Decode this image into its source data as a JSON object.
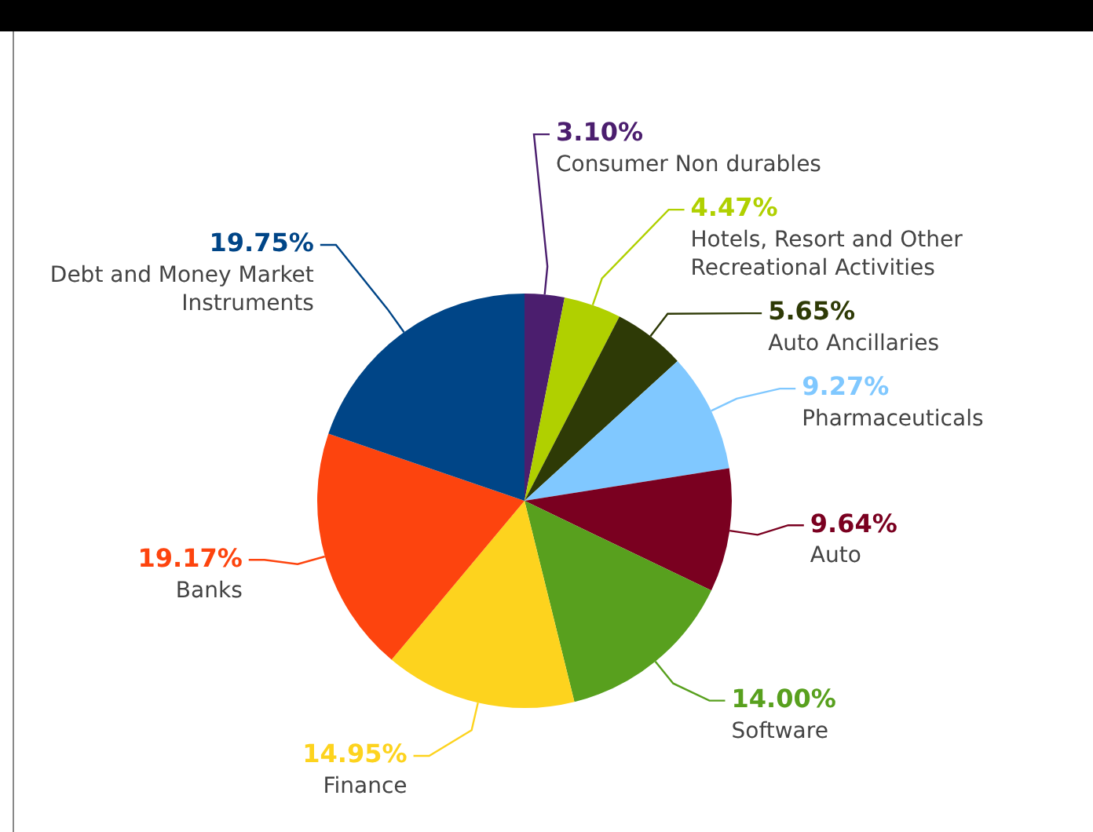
{
  "chart_data": {
    "type": "pie",
    "categories": [
      "Consumer Non durables",
      "Hotels, Resort and Other Recreational Activities",
      "Auto Ancillaries",
      "Pharmaceuticals",
      "Auto",
      "Software",
      "Finance",
      "Banks",
      "Debt and Money Market Instruments"
    ],
    "values": [
      3.1,
      4.47,
      5.65,
      9.27,
      9.64,
      14.0,
      14.95,
      19.17,
      19.75
    ],
    "value_labels": [
      "3.10%",
      "4.47%",
      "5.65%",
      "9.27%",
      "9.64%",
      "14.00%",
      "14.95%",
      "19.17%",
      "19.75%"
    ],
    "colors": [
      "#4b1e6e",
      "#b0d000",
      "#2e3a06",
      "#80c8ff",
      "#7a0020",
      "#58a01e",
      "#fdd31e",
      "#fd440e",
      "#004587"
    ]
  }
}
